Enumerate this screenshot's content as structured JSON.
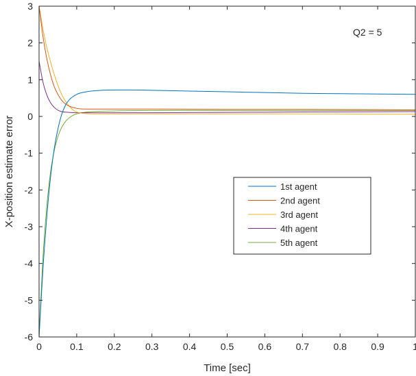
{
  "chart_data": {
    "type": "line",
    "xlabel": "Time [sec]",
    "ylabel": "X-position estimate error",
    "xlim": [
      0,
      1
    ],
    "ylim": [
      -6,
      3
    ],
    "xticks": [
      0,
      0.1,
      0.2,
      0.3,
      0.4,
      0.5,
      0.6,
      0.7,
      0.8,
      0.9,
      1
    ],
    "xtick_labels": [
      "0",
      "0.1",
      "0.2",
      "0.3",
      "0.4",
      "0.5",
      "0.6",
      "0.7",
      "0.8",
      "0.9",
      "1"
    ],
    "yticks": [
      -6,
      -5,
      -4,
      -3,
      -2,
      -1,
      0,
      1,
      2,
      3
    ],
    "ytick_labels": [
      "-6",
      "-5",
      "-4",
      "-3",
      "-2",
      "-1",
      "0",
      "1",
      "2",
      "3"
    ],
    "grid": false,
    "legend_position": "right",
    "annotation": "Q2 = 5",
    "series": [
      {
        "name": "1st agent",
        "color": "#0072bd",
        "x": [
          0,
          0.01,
          0.02,
          0.03,
          0.04,
          0.05,
          0.06,
          0.07,
          0.08,
          0.1,
          0.12,
          0.15,
          0.2,
          0.25,
          0.3,
          0.4,
          0.5,
          0.6,
          0.7,
          0.8,
          0.9,
          1.0
        ],
        "y": [
          -6,
          -4.2,
          -2.8,
          -1.7,
          -0.9,
          -0.35,
          0.05,
          0.3,
          0.45,
          0.6,
          0.66,
          0.7,
          0.72,
          0.72,
          0.71,
          0.69,
          0.67,
          0.65,
          0.63,
          0.62,
          0.61,
          0.6
        ]
      },
      {
        "name": "2nd agent",
        "color": "#d95319",
        "x": [
          0,
          0.005,
          0.01,
          0.02,
          0.03,
          0.04,
          0.05,
          0.06,
          0.07,
          0.08,
          0.1,
          0.12,
          0.15,
          0.2,
          0.3,
          0.5,
          0.7,
          1.0
        ],
        "y": [
          3,
          2.6,
          2.2,
          1.6,
          1.15,
          0.82,
          0.6,
          0.44,
          0.34,
          0.28,
          0.22,
          0.2,
          0.2,
          0.2,
          0.2,
          0.19,
          0.19,
          0.18
        ]
      },
      {
        "name": "3rd agent",
        "color": "#edb120",
        "x": [
          0,
          0.005,
          0.01,
          0.02,
          0.03,
          0.04,
          0.05,
          0.06,
          0.07,
          0.08,
          0.09,
          0.1,
          0.12,
          0.15,
          0.2,
          0.3,
          0.5,
          0.7,
          1.0
        ],
        "y": [
          3,
          2.7,
          2.4,
          1.9,
          1.5,
          1.15,
          0.85,
          0.6,
          0.42,
          0.28,
          0.18,
          0.12,
          0.08,
          0.07,
          0.07,
          0.07,
          0.07,
          0.07,
          0.06
        ]
      },
      {
        "name": "4th agent",
        "color": "#7e2f8e",
        "x": [
          0,
          0.01,
          0.02,
          0.03,
          0.04,
          0.05,
          0.06,
          0.08,
          0.1,
          0.12,
          0.15,
          0.2,
          0.3,
          0.5,
          0.7,
          1.0
        ],
        "y": [
          1.5,
          0.95,
          0.6,
          0.38,
          0.25,
          0.17,
          0.13,
          0.11,
          0.1,
          0.1,
          0.1,
          0.1,
          0.1,
          0.11,
          0.12,
          0.13
        ]
      },
      {
        "name": "5th agent",
        "color": "#77ac30",
        "x": [
          0,
          0.01,
          0.02,
          0.03,
          0.04,
          0.05,
          0.06,
          0.07,
          0.08,
          0.09,
          0.1,
          0.12,
          0.14,
          0.16,
          0.2,
          0.3,
          0.5,
          0.7,
          1.0
        ],
        "y": [
          -6,
          -3.9,
          -2.5,
          -1.55,
          -0.95,
          -0.55,
          -0.3,
          -0.14,
          -0.04,
          0.03,
          0.07,
          0.11,
          0.13,
          0.14,
          0.15,
          0.16,
          0.16,
          0.16,
          0.16
        ]
      }
    ]
  }
}
